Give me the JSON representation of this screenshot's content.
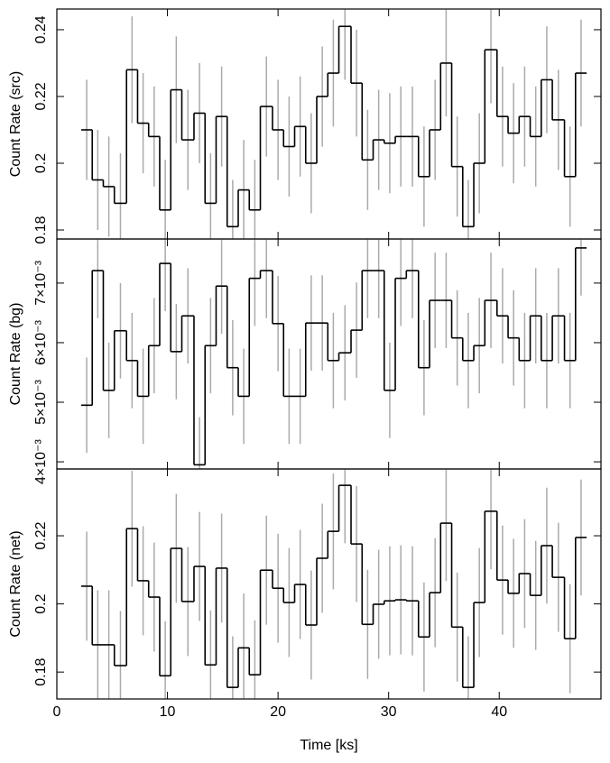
{
  "chart_data": [
    {
      "type": "histogram",
      "ylabel": "Count Rate (src)",
      "color": "#000000",
      "error_color": "#aaaaaa",
      "show_xtick_labels": false,
      "xlim": [
        0,
        49.2
      ],
      "xticks": [
        0,
        10,
        20,
        30,
        40
      ],
      "ylim": [
        0.1773,
        0.2462
      ],
      "yticks": [
        {
          "value": 0.18,
          "label": "0.18"
        },
        {
          "value": 0.2,
          "label": "0.2"
        },
        {
          "value": 0.22,
          "label": "0.22"
        },
        {
          "value": 0.24,
          "label": "0.24"
        }
      ],
      "bins": [
        2.2,
        3.2,
        4.2,
        5.2,
        6.3,
        7.3,
        8.3,
        9.3,
        10.3,
        11.3,
        12.4,
        13.4,
        14.4,
        15.4,
        16.4,
        17.4,
        18.4,
        19.5,
        20.5,
        21.5,
        22.5,
        23.5,
        24.5,
        25.5,
        26.6,
        27.6,
        28.6,
        29.6,
        30.6,
        31.6,
        32.7,
        33.7,
        34.7,
        35.7,
        36.7,
        37.7,
        38.7,
        39.8,
        40.8,
        41.8,
        42.8,
        43.8,
        44.8,
        45.9,
        46.9,
        47.9
      ],
      "values": [
        0.21,
        0.195,
        0.193,
        0.188,
        0.228,
        0.212,
        0.208,
        0.186,
        0.222,
        0.207,
        0.215,
        0.188,
        0.214,
        0.181,
        0.192,
        0.186,
        0.217,
        0.21,
        0.205,
        0.211,
        0.2,
        0.22,
        0.227,
        0.241,
        0.224,
        0.201,
        0.207,
        0.206,
        0.208,
        0.208,
        0.196,
        0.21,
        0.23,
        0.199,
        0.181,
        0.2,
        0.234,
        0.214,
        0.209,
        0.214,
        0.208,
        0.225,
        0.213,
        0.196,
        0.227
      ],
      "errors": [
        0.015,
        0.015,
        0.015,
        0.015,
        0.016,
        0.015,
        0.015,
        0.015,
        0.016,
        0.015,
        0.015,
        0.015,
        0.015,
        0.014,
        0.015,
        0.015,
        0.015,
        0.015,
        0.015,
        0.015,
        0.015,
        0.015,
        0.016,
        0.016,
        0.016,
        0.015,
        0.015,
        0.015,
        0.015,
        0.015,
        0.015,
        0.015,
        0.016,
        0.015,
        0.014,
        0.015,
        0.016,
        0.015,
        0.015,
        0.015,
        0.015,
        0.016,
        0.015,
        0.015,
        0.016
      ]
    },
    {
      "type": "histogram",
      "ylabel": "Count Rate (bg)",
      "color": "#000000",
      "error_color": "#aaaaaa",
      "show_xtick_labels": false,
      "xlim": [
        0,
        49.2
      ],
      "xticks": [
        0,
        10,
        20,
        30,
        40
      ],
      "ylim": [
        0.00388,
        0.00774
      ],
      "yticks": [
        {
          "value": 0.004,
          "label": "4×10⁻³"
        },
        {
          "value": 0.005,
          "label": "5×10⁻³"
        },
        {
          "value": 0.006,
          "label": "6×10⁻³"
        },
        {
          "value": 0.007,
          "label": "7×10⁻³"
        }
      ],
      "bins": [
        2.2,
        3.2,
        4.2,
        5.2,
        6.3,
        7.3,
        8.3,
        9.3,
        10.3,
        11.3,
        12.4,
        13.4,
        14.4,
        15.4,
        16.4,
        17.4,
        18.4,
        19.5,
        20.5,
        21.5,
        22.5,
        23.5,
        24.5,
        25.5,
        26.6,
        27.6,
        28.6,
        29.6,
        30.6,
        31.6,
        32.7,
        33.7,
        34.7,
        35.7,
        36.7,
        37.7,
        38.7,
        39.8,
        40.8,
        41.8,
        42.8,
        43.8,
        44.8,
        45.9,
        46.9,
        47.9
      ],
      "values": [
        0.00495,
        0.00721,
        0.0052,
        0.0062,
        0.0057,
        0.0051,
        0.00595,
        0.00733,
        0.00585,
        0.00645,
        0.00395,
        0.00595,
        0.00695,
        0.00558,
        0.0051,
        0.00708,
        0.00721,
        0.00632,
        0.0051,
        0.0051,
        0.00633,
        0.00633,
        0.0057,
        0.00583,
        0.00621,
        0.00721,
        0.00721,
        0.0052,
        0.00708,
        0.00721,
        0.00558,
        0.00671,
        0.00671,
        0.00608,
        0.0057,
        0.00595,
        0.00671,
        0.00645,
        0.00608,
        0.0057,
        0.00645,
        0.0057,
        0.00645,
        0.0057,
        0.00759
      ],
      "errors": [
        0.0008,
        0.0008,
        0.0008,
        0.0008,
        0.0008,
        0.0008,
        0.0008,
        0.0008,
        0.0008,
        0.0008,
        0.0008,
        0.0008,
        0.0008,
        0.0008,
        0.0008,
        0.0008,
        0.0008,
        0.0008,
        0.0008,
        0.0008,
        0.0008,
        0.0008,
        0.0008,
        0.0008,
        0.0008,
        0.0008,
        0.0008,
        0.0008,
        0.0008,
        0.0008,
        0.0008,
        0.0008,
        0.0008,
        0.0008,
        0.0008,
        0.0008,
        0.0008,
        0.0008,
        0.0008,
        0.0008,
        0.0008,
        0.0008,
        0.0008,
        0.0008,
        0.0008
      ]
    },
    {
      "type": "histogram",
      "ylabel": "Count Rate (net)",
      "xlabel": "Time [ks]",
      "color": "#000000",
      "error_color": "#aaaaaa",
      "show_xtick_labels": true,
      "xlim": [
        0,
        49.2
      ],
      "xticks": [
        0,
        10,
        20,
        30,
        40
      ],
      "ylim": [
        0.1721,
        0.2396
      ],
      "yticks": [
        {
          "value": 0.18,
          "label": "0.18"
        },
        {
          "value": 0.2,
          "label": "0.2"
        },
        {
          "value": 0.22,
          "label": "0.22"
        }
      ],
      "bins": [
        2.2,
        3.2,
        4.2,
        5.2,
        6.3,
        7.3,
        8.3,
        9.3,
        10.3,
        11.3,
        12.4,
        13.4,
        14.4,
        15.4,
        16.4,
        17.4,
        18.4,
        19.5,
        20.5,
        21.5,
        22.5,
        23.5,
        24.5,
        25.5,
        26.6,
        27.6,
        28.6,
        29.6,
        30.6,
        31.6,
        32.7,
        33.7,
        34.7,
        35.7,
        36.7,
        37.7,
        38.7,
        39.8,
        40.8,
        41.8,
        42.8,
        43.8,
        44.8,
        45.9,
        46.9,
        47.9
      ],
      "values": [
        0.2052,
        0.188,
        0.188,
        0.1819,
        0.2221,
        0.2068,
        0.202,
        0.1789,
        0.2163,
        0.2007,
        0.211,
        0.1821,
        0.2105,
        0.1755,
        0.1871,
        0.1792,
        0.2099,
        0.2046,
        0.2004,
        0.2057,
        0.1938,
        0.2134,
        0.2213,
        0.2348,
        0.2176,
        0.194,
        0.1999,
        0.2009,
        0.2012,
        0.2009,
        0.1903,
        0.2033,
        0.2237,
        0.1932,
        0.1755,
        0.2004,
        0.2272,
        0.207,
        0.2031,
        0.2089,
        0.2025,
        0.2171,
        0.2078,
        0.1898,
        0.2195
      ],
      "errors": [
        0.016,
        0.016,
        0.016,
        0.016,
        0.017,
        0.016,
        0.016,
        0.016,
        0.016,
        0.016,
        0.016,
        0.016,
        0.016,
        0.015,
        0.016,
        0.016,
        0.016,
        0.016,
        0.016,
        0.016,
        0.016,
        0.016,
        0.017,
        0.017,
        0.017,
        0.016,
        0.016,
        0.016,
        0.016,
        0.016,
        0.016,
        0.016,
        0.017,
        0.016,
        0.015,
        0.016,
        0.017,
        0.016,
        0.016,
        0.016,
        0.016,
        0.017,
        0.016,
        0.016,
        0.017
      ]
    }
  ]
}
